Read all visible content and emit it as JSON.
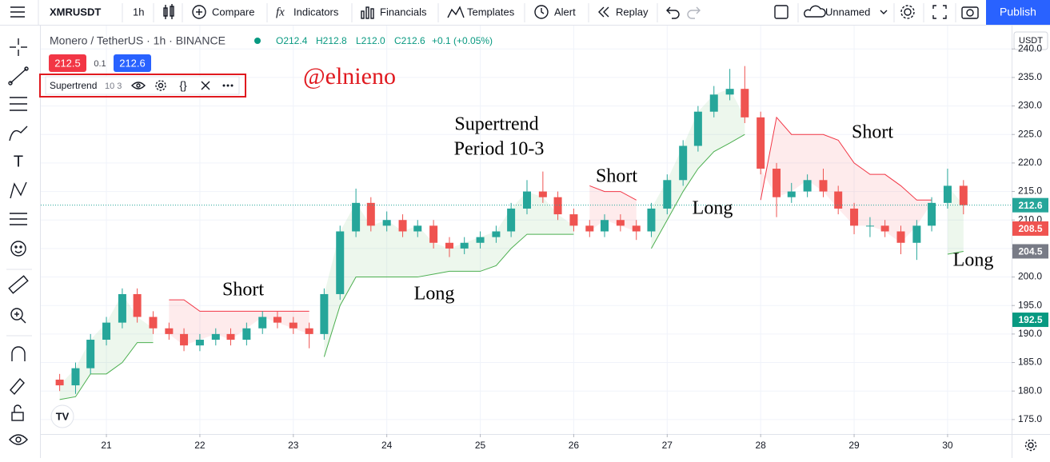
{
  "toolbar": {
    "symbol": "XMRUSDT",
    "interval": "1h",
    "items": [
      "Compare",
      "Indicators",
      "Financials",
      "Templates",
      "Alert",
      "Replay"
    ],
    "layout": "Unnamed",
    "publish": "Publish"
  },
  "legend": {
    "name": "Monero / TetherUS · 1h · BINANCE",
    "ohlc": [
      "O212.4",
      "H212.8",
      "L212.0",
      "C212.6",
      "+0.1 (+0.05%)"
    ],
    "bid": "212.5",
    "spread": "0.1",
    "ask": "212.6",
    "indicator": "Supertrend",
    "indicator_params": "10 3"
  },
  "currency": "USDT",
  "chart_data": {
    "type": "candlestick",
    "x": [
      20.5,
      20.67,
      20.83,
      21,
      21.17,
      21.33,
      21.5,
      21.67,
      21.83,
      22,
      22.17,
      22.33,
      22.5,
      22.67,
      22.83,
      23,
      23.17,
      23.33,
      23.5,
      23.67,
      23.83,
      24,
      24.17,
      24.33,
      24.5,
      24.67,
      24.83,
      25,
      25.17,
      25.33,
      25.5,
      25.67,
      25.83,
      26,
      26.17,
      26.33,
      26.5,
      26.67,
      26.83,
      27,
      27.17,
      27.33,
      27.5,
      27.67,
      27.83,
      28,
      28.17,
      28.33,
      28.5,
      28.67,
      28.83,
      29,
      29.17,
      29.33,
      29.5,
      29.67,
      29.83,
      30,
      30.17
    ],
    "open": [
      182,
      181,
      184,
      189,
      192,
      197,
      193,
      191,
      190,
      188,
      189,
      190,
      189,
      191,
      193,
      192,
      191,
      190,
      197,
      208,
      213,
      209,
      210,
      208,
      209,
      206,
      205,
      206,
      207,
      208,
      212,
      215,
      214,
      211,
      209,
      208,
      210,
      209,
      208,
      212,
      217,
      223,
      229,
      232,
      233,
      228,
      219,
      214,
      215,
      217,
      215,
      212,
      209,
      209,
      208,
      206,
      209,
      213,
      216
    ],
    "high": [
      183,
      185,
      190,
      193,
      198,
      198,
      194,
      192,
      191,
      190,
      191,
      191,
      192,
      194,
      194,
      193,
      192,
      198,
      209,
      215.5,
      214,
      211.5,
      211,
      210,
      210,
      207,
      207,
      208,
      209,
      213,
      217,
      218.5,
      215,
      212,
      210,
      211,
      211,
      210,
      213,
      218,
      224,
      230,
      233.5,
      236.5,
      237,
      229,
      220,
      216.5,
      218,
      219,
      216,
      213,
      210.5,
      210,
      209,
      210,
      214,
      219,
      217
    ],
    "low": [
      180,
      179.5,
      183,
      188,
      191,
      192,
      190,
      189,
      187,
      187,
      188,
      188,
      188,
      190,
      191,
      190,
      187.5,
      189,
      196,
      207,
      208,
      208,
      207,
      207,
      205,
      203.5,
      204,
      205,
      206,
      207,
      211,
      213,
      210,
      208,
      207,
      207,
      208,
      206.5,
      207,
      211,
      216,
      222,
      228,
      231,
      227,
      218,
      210.5,
      213,
      214,
      214,
      211,
      207.5,
      207,
      207,
      204,
      203,
      208,
      212,
      211
    ],
    "close": [
      181,
      184,
      189,
      192,
      197,
      193,
      191,
      190,
      188,
      189,
      190,
      189,
      191,
      193,
      192,
      191,
      190,
      197,
      208,
      213,
      209,
      210,
      208,
      209,
      206,
      205,
      206,
      207,
      208,
      212,
      215,
      214,
      211,
      209,
      208,
      210,
      209,
      208,
      212,
      217,
      223,
      229,
      232,
      233,
      228,
      219,
      214,
      215,
      217,
      215,
      212,
      209,
      209,
      208,
      206,
      209,
      213,
      216,
      212.6
    ],
    "up_color": "#26a69a",
    "down_color": "#ef5350",
    "series": [
      {
        "color": "#4caf50",
        "values": [
          178.5,
          179,
          183,
          183,
          185,
          188.5,
          188.5,
          null,
          null,
          null,
          null,
          null,
          null,
          null,
          null,
          null,
          null,
          186,
          195,
          200,
          200,
          200,
          200,
          200,
          200.5,
          201,
          201,
          201,
          202,
          205,
          207.5,
          207.5,
          207.5,
          207.5,
          null,
          null,
          null,
          null,
          205,
          210,
          215,
          219,
          222,
          223.5,
          225,
          null,
          null,
          null,
          null,
          null,
          null,
          null,
          null,
          null,
          null,
          null,
          null,
          204,
          204.5
        ]
      },
      {
        "color": "#f23645",
        "values": [
          null,
          null,
          null,
          null,
          null,
          null,
          null,
          196,
          196,
          194,
          194,
          194,
          194,
          194,
          194,
          194,
          194,
          null,
          null,
          null,
          null,
          null,
          null,
          null,
          null,
          null,
          null,
          null,
          null,
          null,
          null,
          null,
          null,
          null,
          216,
          215,
          215,
          213.5,
          null,
          null,
          null,
          null,
          null,
          null,
          null,
          213.5,
          228,
          225,
          225,
          225,
          224,
          220,
          218,
          218,
          216,
          213.5,
          213.5,
          null,
          null
        ]
      }
    ],
    "xlim": [
      20.298,
      30.685
    ],
    "xticks": [
      21,
      22,
      23,
      24,
      25,
      26,
      27,
      28,
      29,
      30
    ],
    "ylim": [
      172.46,
      244.1
    ],
    "yticks": [
      {
        "value": 175,
        "label": "175.0"
      },
      {
        "value": 180,
        "label": "180.0"
      },
      {
        "value": 185,
        "label": "185.0"
      },
      {
        "value": 190,
        "label": "190.0"
      },
      {
        "value": 195,
        "label": "195.0"
      },
      {
        "value": 200,
        "label": "200.0"
      },
      {
        "value": 205,
        "label": "205.0"
      },
      {
        "value": 210,
        "label": "210.0"
      },
      {
        "value": 215,
        "label": "215.0"
      },
      {
        "value": 220,
        "label": "220.0"
      },
      {
        "value": 225,
        "label": "225.0"
      },
      {
        "value": 230,
        "label": "230.0"
      },
      {
        "value": 235,
        "label": "235.0"
      },
      {
        "value": 240,
        "label": "240.0"
      }
    ],
    "grid": true,
    "price_labels": [
      {
        "value": 212.6,
        "color": "#26a69a"
      },
      {
        "value": 208.5,
        "color": "#ef5350"
      },
      {
        "value": 204.5,
        "color": "#787b86"
      },
      {
        "value": 192.5,
        "color": "#089981"
      }
    ],
    "annotations": [
      "@elnieno",
      "Supertrend",
      "Period 10-3",
      "Short",
      "Long",
      "Short",
      "Long",
      "Short",
      "Long"
    ]
  }
}
